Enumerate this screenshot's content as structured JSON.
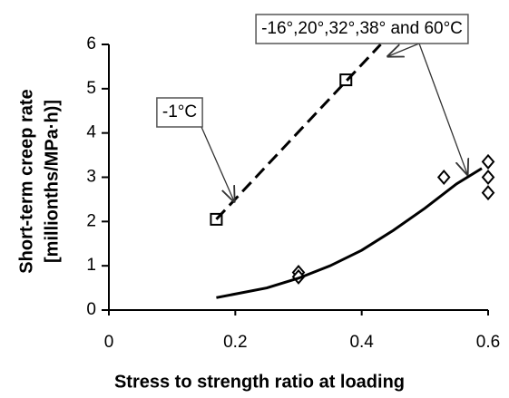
{
  "chart_data": {
    "type": "scatter",
    "xlabel": "Stress to strength ratio at loading",
    "ylabel": [
      "Short-term creep rate",
      "[millionths/MPa·h)]"
    ],
    "xlim": [
      0,
      0.6
    ],
    "xticks": [
      0,
      0.2,
      0.4,
      0.6
    ],
    "ylim": [
      0,
      6
    ],
    "yticks": [
      0,
      1,
      2,
      3,
      4,
      5,
      6
    ],
    "grid": false,
    "series": [
      {
        "marker": "square",
        "color": "#000000",
        "x": [
          0.17,
          0.375
        ],
        "values": [
          2.05,
          5.2
        ]
      },
      {
        "marker": "diamond",
        "color": "#000000",
        "x": [
          0.3,
          0.3,
          0.53,
          0.6,
          0.6,
          0.6
        ],
        "values": [
          0.85,
          0.75,
          3.0,
          3.35,
          3.0,
          2.65
        ]
      },
      {
        "line": "dashed",
        "color": "#000000",
        "x": [
          0.17,
          0.43
        ],
        "values": [
          2.05,
          6.0
        ]
      },
      {
        "line": "solid",
        "color": "#000000",
        "x": [
          0.17,
          0.25,
          0.3,
          0.35,
          0.4,
          0.45,
          0.5,
          0.55,
          0.59
        ],
        "values": [
          0.28,
          0.5,
          0.72,
          1.0,
          1.35,
          1.8,
          2.3,
          2.85,
          3.2
        ]
      }
    ],
    "annotations": [
      "-1°C",
      "-16°,20°,32°,38° and 60°C"
    ]
  }
}
